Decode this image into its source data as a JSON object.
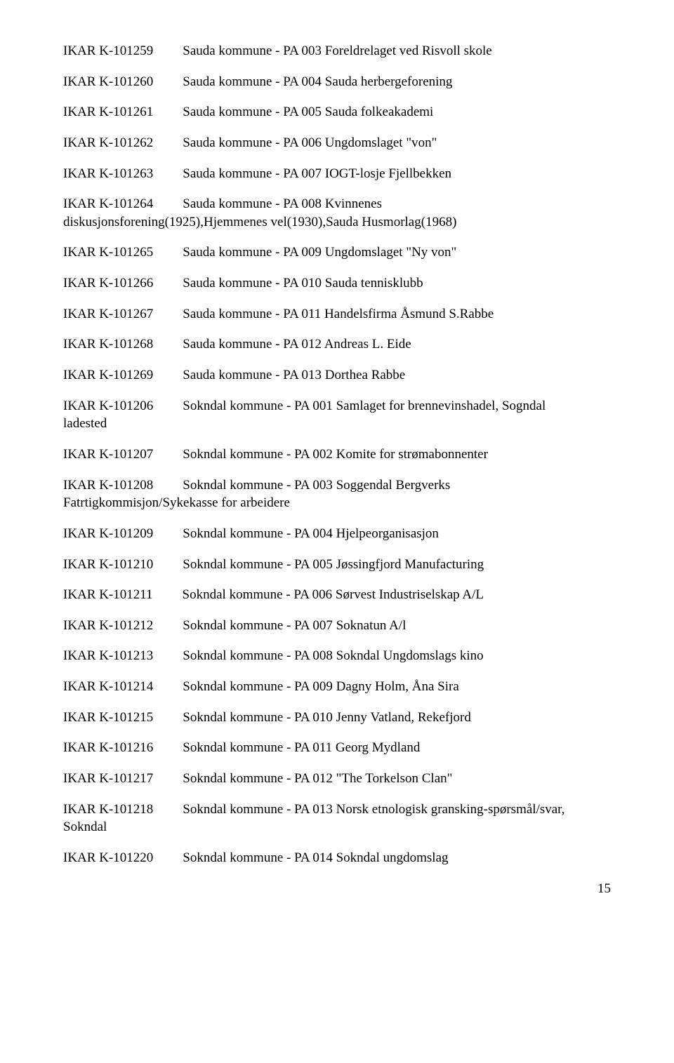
{
  "entries": [
    {
      "code": "IKAR  K-101259",
      "desc": "Sauda kommune - PA 003 Foreldrelaget ved Risvoll skole",
      "cont": ""
    },
    {
      "code": "IKAR  K-101260",
      "desc": "Sauda kommune - PA 004 Sauda herbergeforening",
      "cont": ""
    },
    {
      "code": "IKAR  K-101261",
      "desc": "Sauda kommune - PA 005 Sauda folkeakademi",
      "cont": ""
    },
    {
      "code": "IKAR  K-101262",
      "desc": "Sauda kommune - PA 006 Ungdomslaget \"von\"",
      "cont": ""
    },
    {
      "code": "IKAR  K-101263",
      "desc": "Sauda kommune - PA 007 IOGT-losje Fjellbekken",
      "cont": ""
    },
    {
      "code": "IKAR  K-101264",
      "desc": "Sauda kommune - PA 008 Kvinnenes",
      "cont": "diskusjonsforening(1925),Hjemmenes vel(1930),Sauda Husmorlag(1968)"
    },
    {
      "code": "IKAR  K-101265",
      "desc": "Sauda kommune - PA 009 Ungdomslaget \"Ny von\"",
      "cont": ""
    },
    {
      "code": "IKAR  K-101266",
      "desc": "Sauda kommune - PA 010 Sauda tennisklubb",
      "cont": ""
    },
    {
      "code": "IKAR  K-101267",
      "desc": "Sauda kommune - PA 011 Handelsfirma Åsmund S.Rabbe",
      "cont": ""
    },
    {
      "code": "IKAR  K-101268",
      "desc": "Sauda kommune - PA 012 Andreas L. Eide",
      "cont": ""
    },
    {
      "code": "IKAR  K-101269",
      "desc": "Sauda kommune - PA 013 Dorthea Rabbe",
      "cont": ""
    },
    {
      "code": "IKAR  K-101206",
      "desc": "Sokndal kommune - PA 001 Samlaget for brennevinshadel, Sogndal",
      "cont": "ladested"
    },
    {
      "code": "IKAR  K-101207",
      "desc": "Sokndal kommune - PA 002 Komite for strømabonnenter",
      "cont": ""
    },
    {
      "code": "IKAR  K-101208",
      "desc": "Sokndal kommune - PA 003 Soggendal Bergverks",
      "cont": "Fatrtigkommisjon/Sykekasse for arbeidere"
    },
    {
      "code": "IKAR  K-101209",
      "desc": "Sokndal kommune - PA 004 Hjelpeorganisasjon",
      "cont": ""
    },
    {
      "code": "IKAR  K-101210",
      "desc": "Sokndal kommune - PA 005 Jøssingfjord Manufacturing",
      "cont": ""
    },
    {
      "code": "IKAR  K-101211",
      "desc": "Sokndal kommune - PA 006 Sørvest Industriselskap A/L",
      "cont": ""
    },
    {
      "code": "IKAR  K-101212",
      "desc": "Sokndal kommune - PA 007 Soknatun A/l",
      "cont": ""
    },
    {
      "code": "IKAR  K-101213",
      "desc": "Sokndal kommune - PA 008 Sokndal Ungdomslags kino",
      "cont": ""
    },
    {
      "code": "IKAR  K-101214",
      "desc": "Sokndal kommune - PA 009 Dagny Holm, Åna Sira",
      "cont": ""
    },
    {
      "code": "IKAR  K-101215",
      "desc": "Sokndal kommune - PA 010 Jenny Vatland, Rekefjord",
      "cont": ""
    },
    {
      "code": "IKAR  K-101216",
      "desc": "Sokndal kommune - PA 011 Georg Mydland",
      "cont": ""
    },
    {
      "code": "IKAR  K-101217",
      "desc": "Sokndal kommune - PA 012 \"The Torkelson Clan\"",
      "cont": ""
    },
    {
      "code": "IKAR  K-101218",
      "desc": "Sokndal kommune - PA 013 Norsk etnologisk gransking-spørsmål/svar,",
      "cont": "Sokndal"
    },
    {
      "code": "IKAR  K-101220",
      "desc": "Sokndal kommune - PA 014 Sokndal ungdomslag",
      "cont": ""
    }
  ],
  "page_number": "15"
}
